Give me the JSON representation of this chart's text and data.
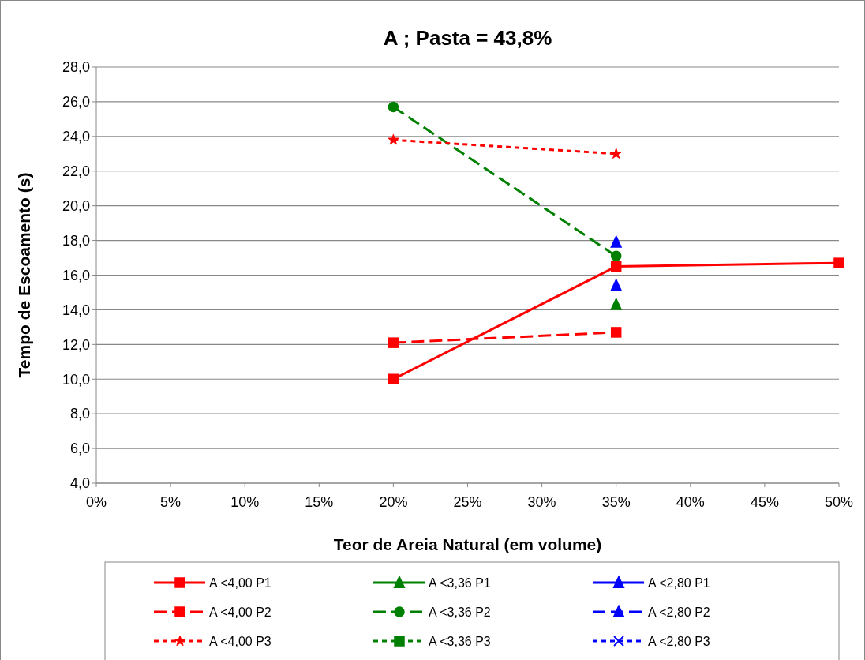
{
  "chart_data": {
    "type": "line",
    "title": "A ; Pasta = 43,8%",
    "xlabel": "Teor de Areia Natural (em volume)",
    "ylabel": "Tempo de Escoamento (s)",
    "xlim": [
      0,
      50
    ],
    "xticks": [
      {
        "value": 0,
        "label": "0%"
      },
      {
        "value": 5,
        "label": "5%"
      },
      {
        "value": 10,
        "label": "10%"
      },
      {
        "value": 15,
        "label": "15%"
      },
      {
        "value": 20,
        "label": "20%"
      },
      {
        "value": 25,
        "label": "25%"
      },
      {
        "value": 30,
        "label": "30%"
      },
      {
        "value": 35,
        "label": "35%"
      },
      {
        "value": 40,
        "label": "40%"
      },
      {
        "value": 45,
        "label": "45%"
      },
      {
        "value": 50,
        "label": "50%"
      }
    ],
    "ylim": [
      4,
      28
    ],
    "yticks": [
      {
        "value": 4,
        "label": "4,0"
      },
      {
        "value": 6,
        "label": "6,0"
      },
      {
        "value": 8,
        "label": "8,0"
      },
      {
        "value": 10,
        "label": "10,0"
      },
      {
        "value": 12,
        "label": "12,0"
      },
      {
        "value": 14,
        "label": "14,0"
      },
      {
        "value": 16,
        "label": "16,0"
      },
      {
        "value": 18,
        "label": "18,0"
      },
      {
        "value": 20,
        "label": "20,0"
      },
      {
        "value": 22,
        "label": "22,0"
      },
      {
        "value": 24,
        "label": "24,0"
      },
      {
        "value": 26,
        "label": "26,0"
      },
      {
        "value": 28,
        "label": "28,0"
      }
    ],
    "grid": "y",
    "legend": "bottom",
    "series": [
      {
        "name": "A <4,00 P1",
        "color": "#ff0000",
        "x": [
          20,
          35,
          50
        ],
        "values": [
          10.0,
          16.5,
          16.7
        ],
        "marker": "square",
        "line_style": "solid"
      },
      {
        "name": "A <3,36 P1",
        "color": "#008000",
        "x": [
          35
        ],
        "values": [
          14.3
        ],
        "marker": "triangle",
        "line_style": "solid"
      },
      {
        "name": "A <2,80 P1",
        "color": "#0000ff",
        "x": [
          35
        ],
        "values": [
          15.4
        ],
        "marker": "triangle",
        "line_style": "solid"
      },
      {
        "name": "A <4,00 P2",
        "color": "#ff0000",
        "x": [
          20,
          35
        ],
        "values": [
          12.1,
          12.7
        ],
        "marker": "square",
        "line_style": "dashed"
      },
      {
        "name": "A <3,36 P2",
        "color": "#008000",
        "x": [
          20,
          35
        ],
        "values": [
          25.7,
          17.1
        ],
        "marker": "circle",
        "line_style": "dashed"
      },
      {
        "name": "A <2,80 P2",
        "color": "#0000ff",
        "x": [
          35
        ],
        "values": [
          17.9
        ],
        "marker": "triangle",
        "line_style": "dashed"
      },
      {
        "name": "A <4,00 P3",
        "color": "#ff0000",
        "x": [
          20,
          35
        ],
        "values": [
          23.8,
          23.0
        ],
        "marker": "star",
        "line_style": "dotted"
      },
      {
        "name": "A <3,36 P3",
        "color": "#008000",
        "marker": "square",
        "line_style": "dotted"
      },
      {
        "name": "A <2,80 P3",
        "color": "#0000ff",
        "marker": "cross",
        "line_style": "dotted"
      }
    ]
  }
}
